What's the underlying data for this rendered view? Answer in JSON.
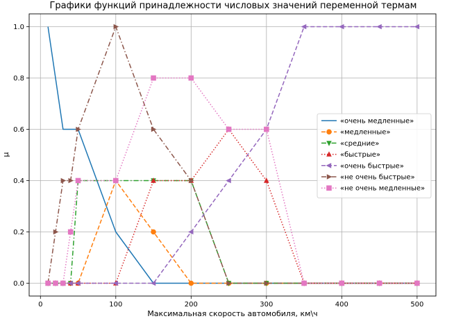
{
  "chart_data": {
    "type": "line",
    "title": "Графики функций принадлежности числовых значений переменной термам",
    "xlabel": "Максимальная скорость автомобиля, км\\ч",
    "ylabel": "μ",
    "xlim": [
      -15,
      525
    ],
    "ylim": [
      -0.05,
      1.05
    ],
    "xticks": [
      0,
      100,
      200,
      300,
      400,
      500
    ],
    "xtick_labels": [
      "0",
      "100",
      "200",
      "300",
      "400",
      "500"
    ],
    "yticks": [
      0.0,
      0.2,
      0.4,
      0.6,
      0.8,
      1.0
    ],
    "ytick_labels": [
      "0.0",
      "0.2",
      "0.4",
      "0.6",
      "0.8",
      "1.0"
    ],
    "grid": true,
    "legend_position": "center-right",
    "x": [
      10,
      20,
      30,
      40,
      50,
      100,
      150,
      200,
      250,
      300,
      350,
      400,
      450,
      500
    ],
    "series": [
      {
        "name": "«очень медленные»",
        "color": "#1f77b4",
        "dash": "solid",
        "marker": "none",
        "values": [
          1.0,
          0.8,
          0.6,
          0.6,
          0.6,
          0.2,
          0.0,
          0.0,
          0.0,
          0.0,
          0.0,
          0.0,
          0.0,
          0.0
        ]
      },
      {
        "name": "«медленные»",
        "color": "#ff7f0e",
        "dash": "dashed",
        "marker": "circle",
        "values": [
          0.0,
          0.0,
          0.0,
          0.0,
          0.0,
          0.4,
          0.2,
          0.0,
          0.0,
          0.0,
          0.0,
          0.0,
          0.0,
          0.0
        ]
      },
      {
        "name": "«средние»",
        "color": "#2ca02c",
        "dash": "dashdot",
        "marker": "triangle-down",
        "values": [
          0.0,
          0.0,
          0.0,
          0.0,
          0.4,
          0.4,
          0.4,
          0.4,
          0.0,
          0.0,
          0.0,
          0.0,
          0.0,
          0.0
        ]
      },
      {
        "name": "«быстрые»",
        "color": "#d62728",
        "dash": "dotted",
        "marker": "triangle-up",
        "values": [
          0.0,
          0.0,
          0.0,
          0.0,
          0.0,
          0.0,
          0.4,
          0.4,
          0.6,
          0.4,
          0.0,
          0.0,
          0.0,
          0.0
        ]
      },
      {
        "name": "«очень быстрые»",
        "color": "#9467bd",
        "dash": "dashed",
        "marker": "triangle-left",
        "values": [
          0.0,
          0.0,
          0.0,
          0.0,
          0.0,
          0.0,
          0.0,
          0.2,
          0.4,
          0.6,
          1.0,
          1.0,
          1.0,
          1.0
        ]
      },
      {
        "name": "«не очень быстрые»",
        "color": "#8c564b",
        "dash": "dashdot",
        "marker": "triangle-right",
        "values": [
          0.0,
          0.2,
          0.4,
          0.4,
          0.6,
          1.0,
          0.6,
          0.4,
          0.0,
          0.0,
          0.0,
          0.0,
          0.0,
          0.0
        ]
      },
      {
        "name": "«не очень медленные»",
        "color": "#e377c2",
        "dash": "dotted",
        "marker": "square",
        "values": [
          0.0,
          0.0,
          0.0,
          0.2,
          0.4,
          0.4,
          0.8,
          0.8,
          0.6,
          0.6,
          0.0,
          0.0,
          0.0,
          0.0
        ]
      }
    ]
  }
}
